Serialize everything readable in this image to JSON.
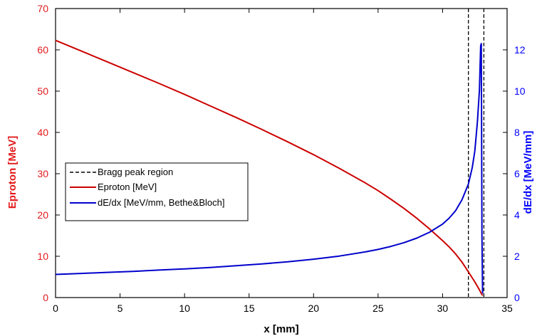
{
  "chart_data": {
    "type": "line",
    "title": "",
    "xlabel": "x [mm]",
    "ylabel_left": "Eproton [MeV]",
    "ylabel_right": "dE/dx [MeV/mm]",
    "xlim": [
      0,
      35
    ],
    "ylim_left": [
      0,
      70
    ],
    "ylim_right": [
      0,
      14
    ],
    "x_ticks": [
      "0",
      "5",
      "10",
      "15",
      "20",
      "25",
      "30",
      "35"
    ],
    "y_left_ticks": [
      "0",
      "10",
      "20",
      "30",
      "40",
      "50",
      "60",
      "70"
    ],
    "y_right_ticks": [
      "0",
      "2",
      "4",
      "6",
      "8",
      "10",
      "12"
    ],
    "grid": false,
    "legend_placement": "center-left",
    "legend": [
      {
        "label": "Bragg peak region",
        "color": "#000000",
        "style": "dashed"
      },
      {
        "label": "Eproton [MeV]",
        "color": "#cc0000",
        "style": "solid"
      },
      {
        "label": "dE/dx [MeV/mm, Bethe&Bloch]",
        "color": "#0000cc",
        "style": "solid"
      }
    ],
    "colors": {
      "left_axis": "#e31a1c",
      "right_axis": "#0000ff"
    },
    "series": [
      {
        "name": "Eproton [MeV]",
        "axis": "left",
        "color": "#cc0000",
        "x": [
          0,
          2,
          4,
          6,
          8,
          10,
          12,
          14,
          16,
          18,
          20,
          22,
          24,
          25,
          26,
          27,
          28,
          29,
          30,
          30.5,
          31,
          31.5,
          32,
          32.5,
          32.8,
          33.0,
          33.1
        ],
        "y": [
          62.3,
          59.7,
          57.1,
          54.5,
          51.9,
          49.2,
          46.4,
          43.6,
          40.7,
          37.7,
          34.6,
          31.3,
          27.8,
          25.9,
          23.8,
          21.6,
          19.2,
          16.6,
          13.8,
          12.3,
          10.6,
          8.6,
          6.2,
          3.8,
          2.2,
          1.0,
          0.5
        ]
      },
      {
        "name": "dE/dx [MeV/mm, Bethe&Bloch]",
        "axis": "right",
        "color": "#0000cc",
        "x": [
          0,
          2,
          4,
          6,
          8,
          10,
          12,
          14,
          16,
          18,
          20,
          22,
          24,
          25,
          26,
          27,
          28,
          29,
          30,
          30.5,
          31,
          31.5,
          32,
          32.3,
          32.5,
          32.7,
          32.85,
          32.95,
          33.0,
          33.05,
          33.1
        ],
        "y": [
          1.12,
          1.17,
          1.22,
          1.27,
          1.33,
          1.39,
          1.46,
          1.54,
          1.63,
          1.73,
          1.86,
          2.01,
          2.21,
          2.33,
          2.48,
          2.66,
          2.88,
          3.17,
          3.56,
          3.84,
          4.2,
          4.73,
          5.5,
          6.3,
          7.1,
          8.5,
          10.0,
          12.2,
          12.3,
          3.0,
          0.2
        ]
      },
      {
        "name": "Bragg peak region",
        "axis": "left",
        "color": "#000000",
        "style": "dashed",
        "vlines": [
          32.0,
          33.2
        ]
      }
    ]
  }
}
